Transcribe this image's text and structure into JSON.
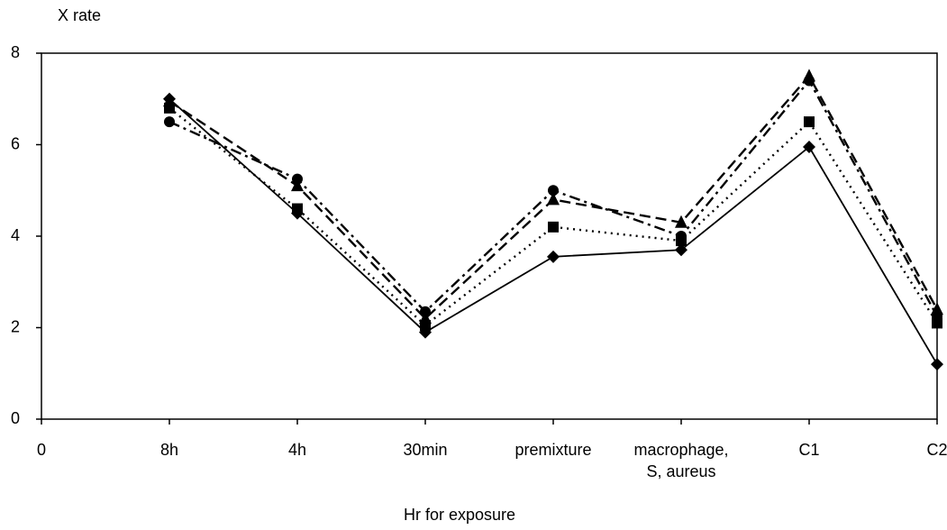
{
  "chart_data": {
    "type": "line",
    "y_label": "X rate",
    "x_label": "Hr for exposure",
    "categories": [
      "0",
      "8h",
      "4h",
      "30min",
      "premixture",
      "macrophage, S, aureus",
      "C1",
      "C2"
    ],
    "series": [
      {
        "color": "#000000",
        "dash": "solid",
        "marker": "diamond",
        "values": [
          null,
          7.0,
          4.5,
          1.9,
          3.55,
          3.7,
          5.95,
          1.2
        ]
      },
      {
        "color": "#000000",
        "dash": "dotted",
        "marker": "square",
        "values": [
          null,
          6.8,
          4.6,
          2.05,
          4.2,
          3.9,
          6.5,
          2.1
        ]
      },
      {
        "color": "#000000",
        "dash": "dashed",
        "marker": "triangle",
        "values": [
          null,
          6.95,
          5.1,
          2.2,
          4.8,
          4.3,
          7.5,
          2.4
        ]
      },
      {
        "color": "#000000",
        "dash": "dashdot",
        "marker": "circle",
        "values": [
          null,
          6.5,
          5.25,
          2.35,
          5.0,
          4.0,
          7.4,
          2.25
        ]
      }
    ],
    "ylim": [
      0,
      8
    ],
    "yticks": [
      0,
      2,
      4,
      6,
      8
    ],
    "grid": false
  }
}
